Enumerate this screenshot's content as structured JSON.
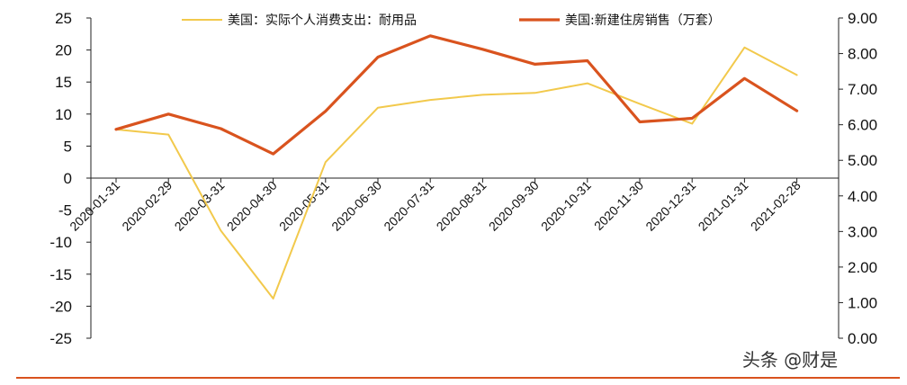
{
  "chart_data": {
    "type": "line",
    "categories": [
      "2020-01-31",
      "2020-02-29",
      "2020-03-31",
      "2020-04-30",
      "2020-05-31",
      "2020-06-30",
      "2020-07-31",
      "2020-08-31",
      "2020-09-30",
      "2020-10-31",
      "2020-11-30",
      "2020-12-31",
      "2021-01-31",
      "2021-02-28"
    ],
    "series": [
      {
        "name": "美国：实际个人消费支出：耐用品",
        "axis": "left",
        "color": "#f2c94c",
        "values": [
          7.6,
          6.8,
          -8.2,
          -18.8,
          2.5,
          11.0,
          12.2,
          13.0,
          13.3,
          14.8,
          11.6,
          8.5,
          20.4,
          16.1
        ]
      },
      {
        "name": "美国:新建住房销售（万套）",
        "axis": "right",
        "color": "#d9531e",
        "values": [
          5.87,
          6.3,
          5.89,
          5.18,
          6.38,
          7.9,
          8.5,
          8.12,
          7.7,
          7.8,
          6.08,
          6.18,
          7.3,
          6.39
        ]
      }
    ],
    "y_left": {
      "min": -25,
      "max": 25,
      "ticks": [
        "25",
        "20",
        "15",
        "10",
        "5",
        "0",
        "-5",
        "-10",
        "-15",
        "-20",
        "-25"
      ]
    },
    "y_right": {
      "min": 0,
      "max": 9,
      "ticks": [
        "9.00",
        "8.00",
        "7.00",
        "6.00",
        "5.00",
        "4.00",
        "3.00",
        "2.00",
        "1.00",
        "0.00"
      ]
    },
    "grid": false,
    "legend_position": "top"
  },
  "watermark": "头条 @财是",
  "colors": {
    "bottom_rule": "#d9531e"
  }
}
